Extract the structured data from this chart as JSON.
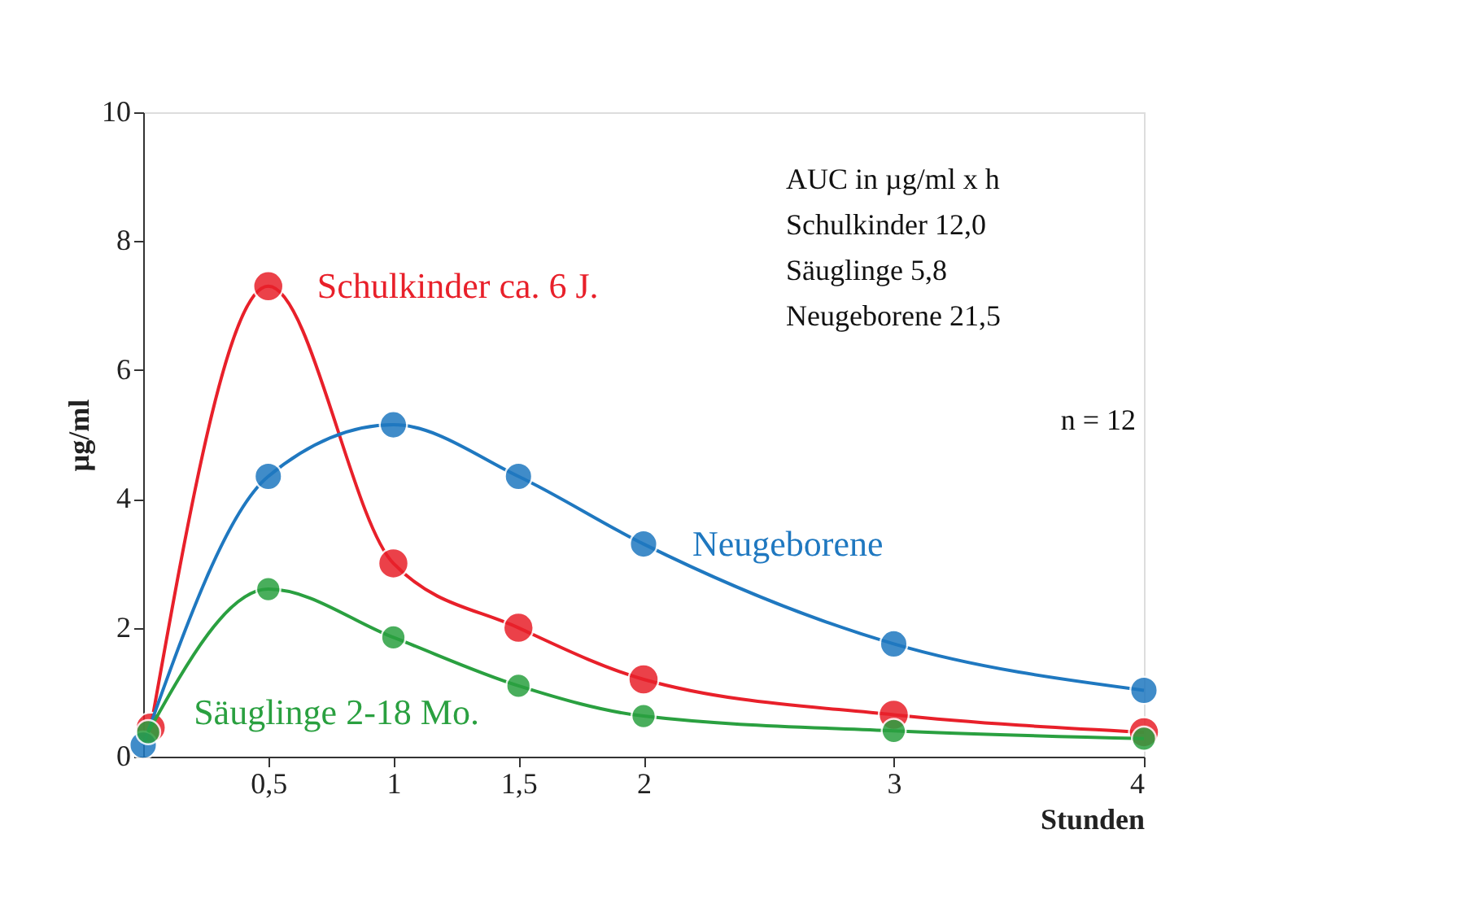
{
  "chart_data": {
    "type": "line",
    "xlabel": "Stunden",
    "ylabel": "µg/ml",
    "xlim": [
      0,
      4
    ],
    "xticks": [
      {
        "value": 0.5,
        "label": "0,5"
      },
      1,
      {
        "value": 1.5,
        "label": "1,5"
      },
      2,
      3,
      4
    ],
    "ylim": [
      0,
      10
    ],
    "yticks": [
      0,
      2,
      4,
      6,
      8,
      10
    ],
    "grid": false,
    "marker": "circle",
    "line_style": "solid",
    "series": [
      {
        "name": "Schulkinder ca. 6 J.",
        "color": "#e8202a",
        "x": [
          0.03,
          0.5,
          1,
          1.5,
          2,
          3,
          4
        ],
        "values": [
          0.45,
          7.3,
          3.0,
          2.0,
          1.2,
          0.65,
          0.38
        ]
      },
      {
        "name": "Neugeborene",
        "color": "#1f78c0",
        "x": [
          0,
          0.5,
          1,
          1.5,
          2,
          3,
          4
        ],
        "values": [
          0.18,
          4.35,
          5.15,
          4.35,
          3.3,
          1.75,
          1.03
        ]
      },
      {
        "name": "Säuglinge 2-18 Mo.",
        "color": "#2aa040",
        "x": [
          0.02,
          0.5,
          1,
          1.5,
          2,
          3,
          4
        ],
        "values": [
          0.38,
          2.6,
          1.85,
          1.1,
          0.63,
          0.4,
          0.28
        ]
      }
    ],
    "annotations": [
      "AUC in µg/ml x h",
      "Schulkinder 12,0",
      "Säuglinge 5,8",
      "Neugeborene 21,5",
      "n = 12"
    ]
  }
}
